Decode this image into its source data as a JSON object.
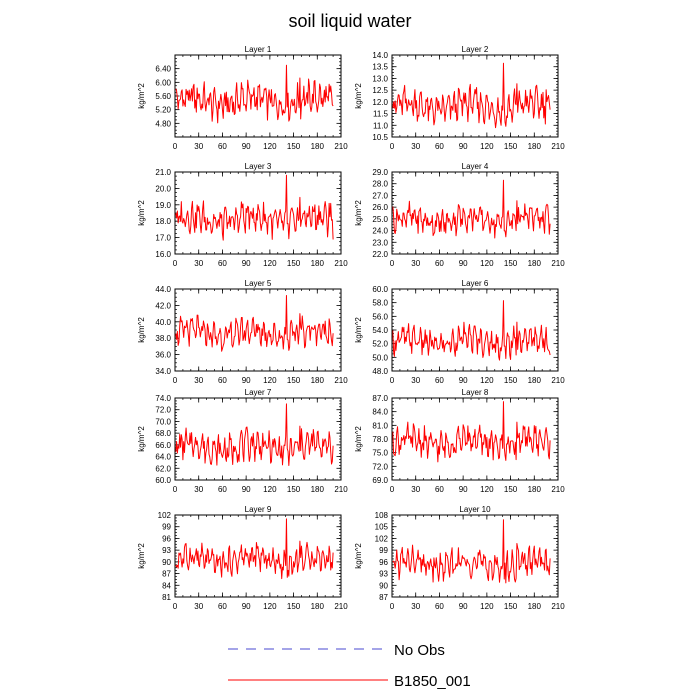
{
  "figure": {
    "title": "soil liquid water"
  },
  "legend": [
    {
      "label": "No Obs",
      "color": "#4a4ad0",
      "dash": "dashed"
    },
    {
      "label": "B1850_001",
      "color": "#ff0000",
      "dash": "solid"
    }
  ],
  "chart_data": [
    {
      "type": "line",
      "title": "Layer 1",
      "ylabel": "kg/m^2",
      "xlim": [
        0,
        210
      ],
      "ylim": [
        4.4,
        6.8
      ],
      "xticks": [
        0,
        30,
        60,
        90,
        120,
        150,
        180,
        210
      ],
      "yticks": [
        4.8,
        5.2,
        5.6,
        6.0,
        6.4
      ],
      "ytick_labels": [
        "4.80",
        "5.20",
        "5.60",
        "6.00",
        "6.40"
      ],
      "series": [
        {
          "color": "#ff0000",
          "base": 5.45,
          "amp": 0.45,
          "spike": 1.05,
          "x_end": 200
        }
      ]
    },
    {
      "type": "line",
      "title": "Layer 2",
      "ylabel": "kg/m^2",
      "xlim": [
        0,
        210
      ],
      "ylim": [
        10.5,
        14.0
      ],
      "xticks": [
        0,
        30,
        60,
        90,
        120,
        150,
        180,
        210
      ],
      "yticks": [
        10.5,
        11.0,
        11.5,
        12.0,
        12.5,
        13.0,
        13.5,
        14.0
      ],
      "ytick_labels": [
        "10.5",
        "11.0",
        "11.5",
        "12.0",
        "12.5",
        "13.0",
        "13.5",
        "14.0"
      ],
      "series": [
        {
          "color": "#ff0000",
          "base": 11.8,
          "amp": 0.65,
          "spike": 1.85,
          "x_end": 200
        }
      ]
    },
    {
      "type": "line",
      "title": "Layer 3",
      "ylabel": "kg/m^2",
      "xlim": [
        0,
        210
      ],
      "ylim": [
        16.0,
        21.0
      ],
      "xticks": [
        0,
        30,
        60,
        90,
        120,
        150,
        180,
        210
      ],
      "yticks": [
        16.0,
        17.0,
        18.0,
        19.0,
        20.0,
        21.0
      ],
      "ytick_labels": [
        "16.0",
        "17.0",
        "18.0",
        "19.0",
        "20.0",
        "21.0"
      ],
      "series": [
        {
          "color": "#ff0000",
          "base": 18.1,
          "amp": 0.9,
          "spike": 2.7,
          "x_end": 200
        }
      ]
    },
    {
      "type": "line",
      "title": "Layer 4",
      "ylabel": "kg/m^2",
      "xlim": [
        0,
        210
      ],
      "ylim": [
        22.0,
        29.0
      ],
      "xticks": [
        0,
        30,
        60,
        90,
        120,
        150,
        180,
        210
      ],
      "yticks": [
        22.0,
        23.0,
        24.0,
        25.0,
        26.0,
        27.0,
        28.0,
        29.0
      ],
      "ytick_labels": [
        "22.0",
        "23.0",
        "24.0",
        "25.0",
        "26.0",
        "27.0",
        "28.0",
        "29.0"
      ],
      "series": [
        {
          "color": "#ff0000",
          "base": 24.9,
          "amp": 1.1,
          "spike": 3.4,
          "x_end": 200
        }
      ]
    },
    {
      "type": "line",
      "title": "Layer 5",
      "ylabel": "kg/m^2",
      "xlim": [
        0,
        210
      ],
      "ylim": [
        34.0,
        44.0
      ],
      "xticks": [
        0,
        30,
        60,
        90,
        120,
        150,
        180,
        210
      ],
      "yticks": [
        34.0,
        36.0,
        38.0,
        40.0,
        42.0,
        44.0
      ],
      "ytick_labels": [
        "34.0",
        "36.0",
        "38.0",
        "40.0",
        "42.0",
        "44.0"
      ],
      "series": [
        {
          "color": "#ff0000",
          "base": 38.6,
          "amp": 1.6,
          "spike": 4.6,
          "x_end": 200
        }
      ]
    },
    {
      "type": "line",
      "title": "Layer 6",
      "ylabel": "kg/m^2",
      "xlim": [
        0,
        210
      ],
      "ylim": [
        48.0,
        60.0
      ],
      "xticks": [
        0,
        30,
        60,
        90,
        120,
        150,
        180,
        210
      ],
      "yticks": [
        48.0,
        50.0,
        52.0,
        54.0,
        56.0,
        58.0,
        60.0
      ],
      "ytick_labels": [
        "48.0",
        "50.0",
        "52.0",
        "54.0",
        "56.0",
        "58.0",
        "60.0"
      ],
      "series": [
        {
          "color": "#ff0000",
          "base": 52.3,
          "amp": 1.9,
          "spike": 6.0,
          "x_end": 200
        }
      ]
    },
    {
      "type": "line",
      "title": "Layer 7",
      "ylabel": "kg/m^2",
      "xlim": [
        0,
        210
      ],
      "ylim": [
        60.0,
        74.0
      ],
      "xticks": [
        0,
        30,
        60,
        90,
        120,
        150,
        180,
        210
      ],
      "yticks": [
        60.0,
        62.0,
        64.0,
        66.0,
        68.0,
        70.0,
        72.0,
        74.0
      ],
      "ytick_labels": [
        "60.0",
        "62.0",
        "64.0",
        "66.0",
        "68.0",
        "70.0",
        "72.0",
        "74.0"
      ],
      "series": [
        {
          "color": "#ff0000",
          "base": 65.6,
          "amp": 2.4,
          "spike": 7.4,
          "x_end": 200
        }
      ]
    },
    {
      "type": "line",
      "title": "Layer 8",
      "ylabel": "kg/m^2",
      "xlim": [
        0,
        210
      ],
      "ylim": [
        69.0,
        87.0
      ],
      "xticks": [
        0,
        30,
        60,
        90,
        120,
        150,
        180,
        210
      ],
      "yticks": [
        69.0,
        72.0,
        75.0,
        78.0,
        81.0,
        84.0,
        87.0
      ],
      "ytick_labels": [
        "69.0",
        "72.0",
        "75.0",
        "78.0",
        "81.0",
        "84.0",
        "87.0"
      ],
      "series": [
        {
          "color": "#ff0000",
          "base": 77.2,
          "amp": 3.0,
          "spike": 9.0,
          "x_end": 200
        }
      ]
    },
    {
      "type": "line",
      "title": "Layer 9",
      "ylabel": "kg/m^2",
      "xlim": [
        0,
        210
      ],
      "ylim": [
        81,
        102
      ],
      "xticks": [
        0,
        30,
        60,
        90,
        120,
        150,
        180,
        210
      ],
      "yticks": [
        81,
        84,
        87,
        90,
        93,
        96,
        99,
        102
      ],
      "ytick_labels": [
        "81",
        "84",
        "87",
        "90",
        "93",
        "96",
        "99",
        "102"
      ],
      "series": [
        {
          "color": "#ff0000",
          "base": 90.5,
          "amp": 3.2,
          "spike": 10.5,
          "x_end": 200
        }
      ]
    },
    {
      "type": "line",
      "title": "Layer 10",
      "ylabel": "kg/m^2",
      "xlim": [
        0,
        210
      ],
      "ylim": [
        87,
        108
      ],
      "xticks": [
        0,
        30,
        60,
        90,
        120,
        150,
        180,
        210
      ],
      "yticks": [
        87,
        90,
        93,
        96,
        99,
        102,
        105,
        108
      ],
      "ytick_labels": [
        "87",
        "90",
        "93",
        "96",
        "99",
        "102",
        "105",
        "108"
      ],
      "series": [
        {
          "color": "#ff0000",
          "base": 95.3,
          "amp": 3.6,
          "spike": 11.5,
          "x_end": 200
        }
      ]
    }
  ]
}
